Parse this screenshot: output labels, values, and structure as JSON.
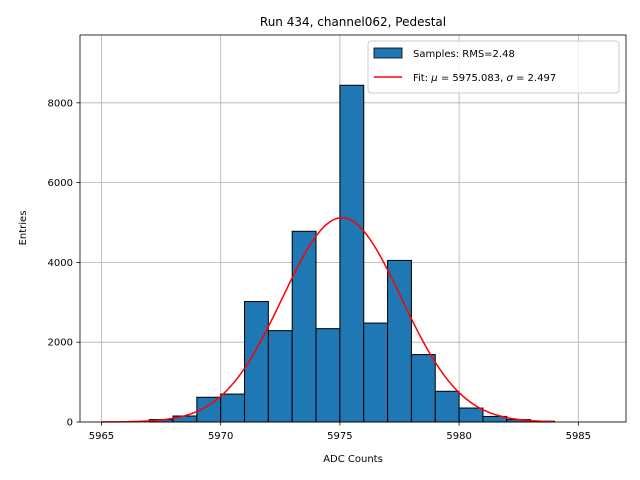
{
  "chart_data": {
    "type": "bar",
    "title": "Run 434, channel062, Pedestal",
    "xlabel": "ADC Counts",
    "ylabel": "Entries",
    "xlim": [
      5964.1,
      5987.0
    ],
    "ylim": [
      0,
      9700
    ],
    "grid": true,
    "legend_position": "top-right",
    "xticks": [
      5965,
      5970,
      5975,
      5980,
      5985
    ],
    "yticks": [
      0,
      2000,
      4000,
      6000,
      8000
    ],
    "histogram": {
      "name": "Samples: RMS=2.48",
      "color": "#1f77b4",
      "bin_edges": [
        5967,
        5968,
        5969,
        5970,
        5971,
        5972,
        5973,
        5974,
        5975,
        5976,
        5977,
        5978,
        5979,
        5980,
        5981,
        5982,
        5983,
        5984
      ],
      "counts": [
        60,
        150,
        620,
        700,
        3020,
        2290,
        4780,
        2340,
        8440,
        2480,
        4050,
        1690,
        770,
        350,
        140,
        60,
        20
      ]
    },
    "fit": {
      "name": "Fit: μ = 5975.083, σ = 2.497",
      "color": "#ff0000",
      "mu": 5975.083,
      "sigma": 2.497,
      "amplitude": 5120,
      "x_range": [
        5965,
        5984
      ]
    }
  },
  "legend": {
    "hist_label": "Samples: RMS=2.48",
    "fit_prefix": "Fit: ",
    "mu_symbol": "μ",
    "mu_text": " = 5975.083, ",
    "sigma_symbol": "σ",
    "sigma_text": " = 2.497"
  }
}
